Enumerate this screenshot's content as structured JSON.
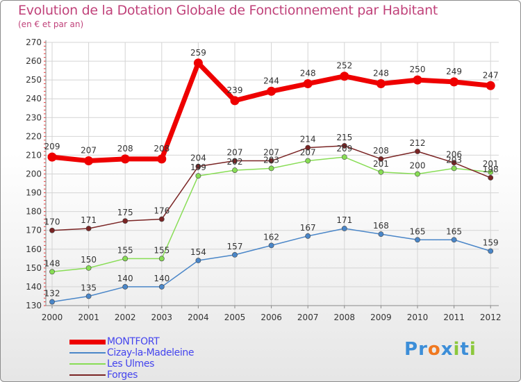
{
  "header": {
    "title": "Evolution de la Dotation Globale de Fonctionnement par Habitant",
    "subtitle": "(en € et par an)"
  },
  "logo": {
    "letters": [
      "P",
      "r",
      "o",
      "x",
      "i",
      "t",
      "i"
    ],
    "colors": [
      "#3c8ed8",
      "#3c8ed8",
      "#f07820",
      "#3c8ed8",
      "#8cc83c",
      "#3c8ed8",
      "#8cc83c"
    ]
  },
  "chart_data": {
    "type": "line",
    "title": "Evolution de la Dotation Globale de Fonctionnement par Habitant",
    "subtitle": "(en € et par an)",
    "xlabel": "",
    "ylabel": "",
    "categories": [
      "2000",
      "2001",
      "2002",
      "2003",
      "2004",
      "2005",
      "2006",
      "2007",
      "2008",
      "2009",
      "2010",
      "2011",
      "2012"
    ],
    "yticks": [
      130,
      140,
      150,
      160,
      170,
      180,
      190,
      200,
      210,
      220,
      230,
      240,
      250,
      260,
      270
    ],
    "ylim": [
      130,
      270
    ],
    "grid": true,
    "legend_position": "bottom-left",
    "series": [
      {
        "name": "MONTFORT",
        "color": "#ee0000",
        "emphasis": true,
        "values": [
          209,
          207,
          208,
          208,
          259,
          239,
          244,
          248,
          252,
          248,
          250,
          249,
          247
        ]
      },
      {
        "name": "Cizay-la-Madeleine",
        "color": "#4a86c8",
        "emphasis": false,
        "values": [
          132,
          135,
          140,
          140,
          154,
          157,
          162,
          167,
          171,
          168,
          165,
          165,
          159
        ]
      },
      {
        "name": "Les Ulmes",
        "color": "#88dd55",
        "emphasis": false,
        "values": [
          148,
          150,
          155,
          155,
          199,
          202,
          203,
          207,
          209,
          201,
          200,
          203,
          201
        ]
      },
      {
        "name": "Forges",
        "color": "#7a2424",
        "emphasis": false,
        "values": [
          170,
          171,
          175,
          176,
          204,
          207,
          207,
          214,
          215,
          208,
          212,
          206,
          198
        ]
      }
    ]
  }
}
